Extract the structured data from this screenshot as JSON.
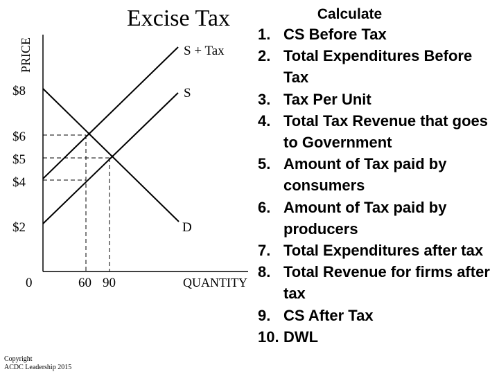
{
  "title": "Excise Tax",
  "graph": {
    "y_axis_label": "PRICE",
    "x_axis_label": "QUANTITY",
    "origin_label": "0",
    "y_ticks": [
      "$8",
      "$6",
      "$5",
      "$4",
      "$2"
    ],
    "x_ticks": [
      "60",
      "90"
    ],
    "curves": {
      "supply_plus_tax": "S + Tax",
      "supply": "S",
      "demand": "D"
    }
  },
  "copyright": [
    "Copyright",
    "ACDC Leadership 2015"
  ],
  "calculate": {
    "heading": "Calculate",
    "items": [
      {
        "num": "1.",
        "text": "CS Before Tax"
      },
      {
        "num": "2.",
        "text": "Total Expenditures Before Tax"
      },
      {
        "num": "3.",
        "text": "Tax Per Unit"
      },
      {
        "num": "4.",
        "text": "Total Tax Revenue that goes to Government"
      },
      {
        "num": "5.",
        "text": "Amount of Tax paid by consumers"
      },
      {
        "num": "6.",
        "text": "Amount of Tax paid by producers"
      },
      {
        "num": "7.",
        "text": "Total Expenditures after tax"
      },
      {
        "num": "8.",
        "text": "Total Revenue for firms after tax"
      },
      {
        "num": "9.",
        "text": "CS After Tax"
      },
      {
        "num": "10.",
        "text": "DWL"
      }
    ]
  }
}
